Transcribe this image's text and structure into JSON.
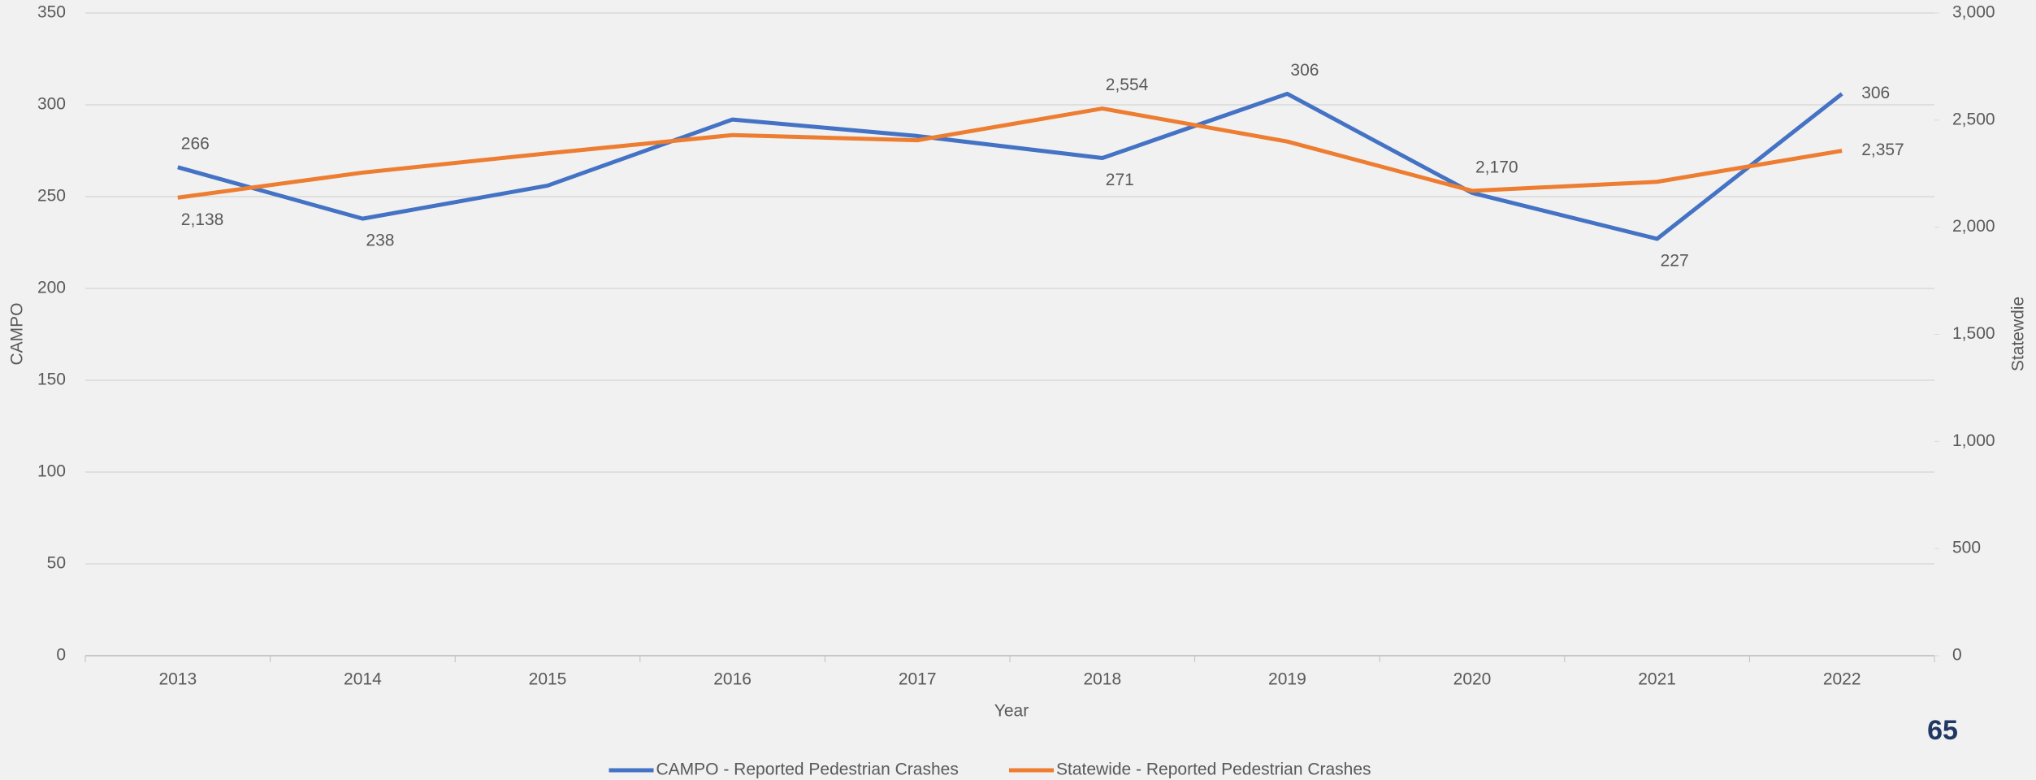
{
  "chart_data": {
    "type": "line",
    "x_label": "Year",
    "y_label": "CAMPO",
    "y2_label": "Statewdie",
    "page_number": "65",
    "categories": [
      "2013",
      "2014",
      "2015",
      "2016",
      "2017",
      "2018",
      "2019",
      "2020",
      "2021",
      "2022"
    ],
    "series": [
      {
        "name": "CAMPO - Reported Pedestrian Crashes",
        "color": "#4472c4",
        "axis": "y",
        "values": [
          266,
          238,
          256,
          292,
          283,
          271,
          306,
          252,
          227,
          306
        ],
        "value_labels": [
          "266",
          "238",
          null,
          null,
          null,
          "271",
          "306",
          null,
          "227",
          "306"
        ]
      },
      {
        "name": "Statewide - Reported Pedestrian Crashes",
        "color": "#ed7d31",
        "axis": "y2",
        "values": [
          2138,
          2255,
          2345,
          2430,
          2406,
          2554,
          2400,
          2170,
          2212,
          2357
        ],
        "value_labels": [
          "2,138",
          null,
          null,
          null,
          null,
          "2,554",
          null,
          "2,170",
          null,
          "2,357"
        ]
      }
    ],
    "ylim": [
      0,
      350
    ],
    "yticks": [
      0,
      50,
      100,
      150,
      200,
      250,
      300,
      350
    ],
    "y2lim": [
      0,
      3000
    ],
    "y2ticks": [
      0,
      500,
      {
        "value": 1000,
        "label": "1,000"
      },
      {
        "value": 1500,
        "label": "1,500"
      },
      {
        "value": 2000,
        "label": "2,000"
      },
      {
        "value": 2500,
        "label": "2,500"
      },
      {
        "value": 3000,
        "label": "3,000"
      }
    ],
    "grid": true,
    "legend": "bottom"
  }
}
